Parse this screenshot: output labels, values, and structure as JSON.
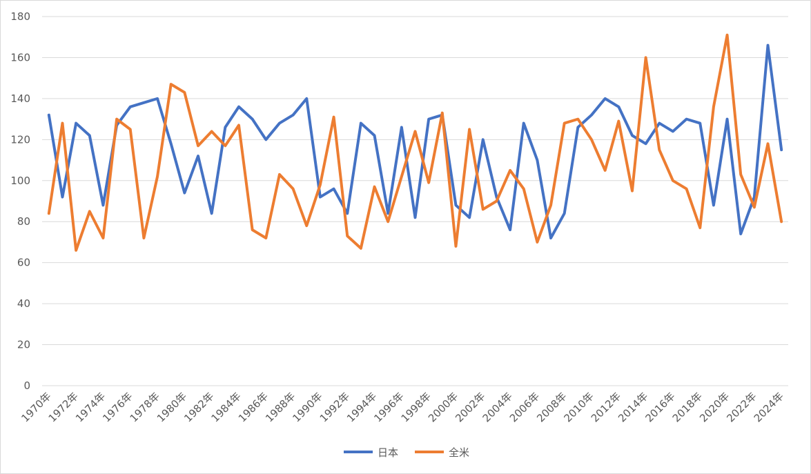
{
  "chart_data": {
    "type": "line",
    "title": "",
    "xlabel": "",
    "ylabel": "",
    "ylim": [
      0,
      180
    ],
    "yticks": [
      0,
      20,
      40,
      60,
      80,
      100,
      120,
      140,
      160,
      180
    ],
    "grid": true,
    "legend_position": "bottom",
    "x": [
      "1970年",
      "1971年",
      "1972年",
      "1973年",
      "1974年",
      "1975年",
      "1976年",
      "1977年",
      "1978年",
      "1979年",
      "1980年",
      "1981年",
      "1982年",
      "1983年",
      "1984年",
      "1985年",
      "1986年",
      "1987年",
      "1988年",
      "1989年",
      "1990年",
      "1991年",
      "1992年",
      "1993年",
      "1994年",
      "1995年",
      "1996年",
      "1997年",
      "1998年",
      "1999年",
      "2000年",
      "2001年",
      "2002年",
      "2003年",
      "2004年",
      "2005年",
      "2006年",
      "2007年",
      "2008年",
      "2009年",
      "2010年",
      "2011年",
      "2012年",
      "2013年",
      "2014年",
      "2015年",
      "2016年",
      "2017年",
      "2018年",
      "2019年",
      "2020年",
      "2021年",
      "2022年",
      "2023年",
      "2024年"
    ],
    "tick_labels": [
      "1970年",
      "1972年",
      "1974年",
      "1976年",
      "1978年",
      "1980年",
      "1982年",
      "1984年",
      "1986年",
      "1988年",
      "1990年",
      "1992年",
      "1994年",
      "1996年",
      "1998年",
      "2000年",
      "2002年",
      "2004年",
      "2006年",
      "2008年",
      "2010年",
      "2012年",
      "2014年",
      "2016年",
      "2018年",
      "2020年",
      "2022年",
      "2024年"
    ],
    "series": [
      {
        "name": "日本",
        "color": "#4472C4",
        "values": [
          132,
          92,
          128,
          122,
          88,
          127,
          136,
          138,
          140,
          118,
          94,
          112,
          84,
          126,
          136,
          130,
          120,
          128,
          132,
          140,
          92,
          96,
          84,
          128,
          122,
          84,
          126,
          82,
          130,
          132,
          88,
          82,
          120,
          92,
          76,
          128,
          110,
          72,
          84,
          126,
          132,
          140,
          136,
          122,
          118,
          128,
          124,
          130,
          128,
          88,
          130,
          74,
          92,
          166,
          115
        ]
      },
      {
        "name": "全米",
        "color": "#ED7D31",
        "values": [
          84,
          128,
          66,
          85,
          72,
          130,
          125,
          72,
          102,
          147,
          143,
          117,
          124,
          117,
          127,
          76,
          72,
          103,
          96,
          78,
          98,
          131,
          73,
          67,
          97,
          80,
          102,
          124,
          99,
          133,
          68,
          125,
          86,
          90,
          105,
          96,
          70,
          88,
          128,
          130,
          120,
          105,
          129,
          95,
          160,
          115,
          100,
          96,
          77,
          136,
          171,
          103,
          87,
          118,
          80
        ]
      }
    ]
  }
}
